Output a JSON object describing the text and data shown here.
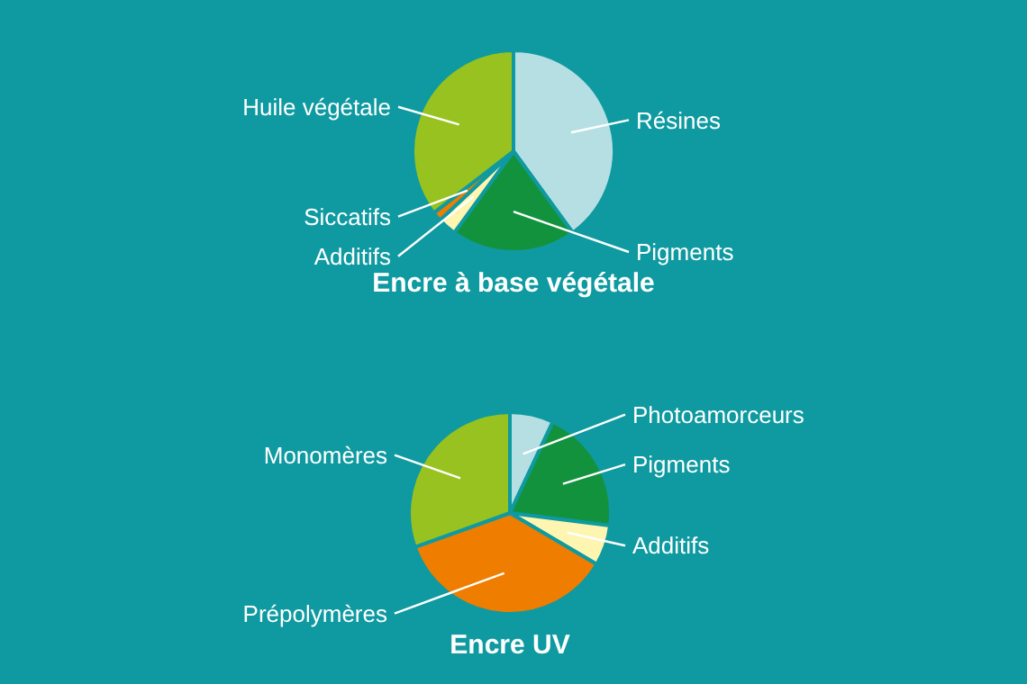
{
  "chart_data": [
    {
      "type": "pie",
      "title": "Encre à base végétale",
      "categories": [
        "Résines",
        "Pigments",
        "Additifs",
        "Siccatifs",
        "Huile végétale"
      ],
      "values": [
        40,
        20,
        3,
        1.5,
        35.5
      ],
      "colors": [
        "#b5dfe3",
        "#13923e",
        "#fdf5b0",
        "#ef7d00",
        "#98c21f"
      ]
    },
    {
      "type": "pie",
      "title": "Encre UV",
      "categories": [
        "Photoamorceurs",
        "Pigments",
        "Additifs",
        "Prépolymères",
        "Monomères"
      ],
      "values": [
        7,
        20,
        6.5,
        36,
        30.5
      ],
      "colors": [
        "#b5dfe3",
        "#13923e",
        "#fdf5b0",
        "#ef7d00",
        "#98c21f"
      ]
    }
  ]
}
